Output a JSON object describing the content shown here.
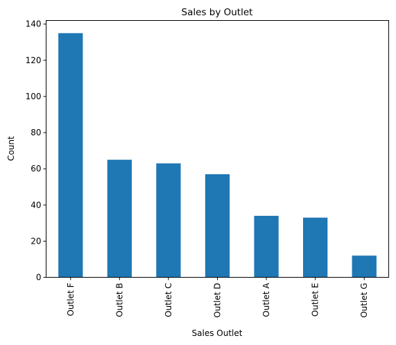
{
  "chart_data": {
    "type": "bar",
    "title": "Sales by Outlet",
    "xlabel": "Sales Outlet",
    "ylabel": "Count",
    "categories": [
      "Outlet F",
      "Outlet B",
      "Outlet C",
      "Outlet D",
      "Outlet A",
      "Outlet E",
      "Outlet G"
    ],
    "values": [
      135,
      65,
      63,
      57,
      34,
      33,
      12
    ],
    "ylim": [
      0,
      142
    ],
    "yticks": [
      0,
      20,
      40,
      60,
      80,
      100,
      120,
      140
    ],
    "bar_color": "#1f77b4",
    "grid": false,
    "legend": "none"
  }
}
